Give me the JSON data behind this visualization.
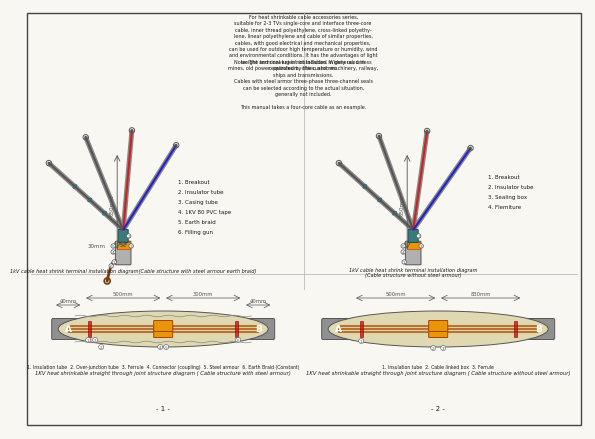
{
  "bg_color": "#f8f7f2",
  "border_color": "#444444",
  "text_color": "#1a1a1a",
  "gray_dark": "#555555",
  "gray_mid": "#888888",
  "gray_light": "#bbbbbb",
  "orange_color": "#e8950a",
  "brown_color": "#7a3a10",
  "teal_color": "#3a7a7a",
  "silver_color": "#aaaaaa",
  "dark_gray": "#666666",
  "page_num_left": "- 1 -",
  "page_num_right": "- 2 -",
  "caption_left": "1kV cable heat shrink terminal installation diagram(Cable structure with steel armour earth braid)",
  "caption_right_1": "1kV cable heat shrink terminal installation diagram",
  "caption_right_2": "(Cable structure without steel armour)",
  "parts_left": [
    "1. Breakout",
    "2. Insulator tube",
    "3. Casing tube",
    "4. 1KV 80 PVC tape",
    "5. Earth braid",
    "6. Filling gun"
  ],
  "parts_right": [
    "1. Breakout",
    "2. Insulator tube",
    "3. Sealing box",
    "4. Flemiture"
  ],
  "joint_caption_left_1": "1. Insulation tube  2. Over-junction tube  3. Ferrule  4. Connector (coupling)  5. Steel armour  6. Earth Braid (Constant)",
  "joint_caption_left_2": "1KV heat shrinkable straight through joint structure diagram ( Cable structure with steel armour)",
  "joint_caption_right_1": "1. Insulation tube  2. Cable linked box  3. Ferrule",
  "joint_caption_right_2": "1KV heat shrinkable straight through joint structure diagram ( Cable structure without steel armour)"
}
